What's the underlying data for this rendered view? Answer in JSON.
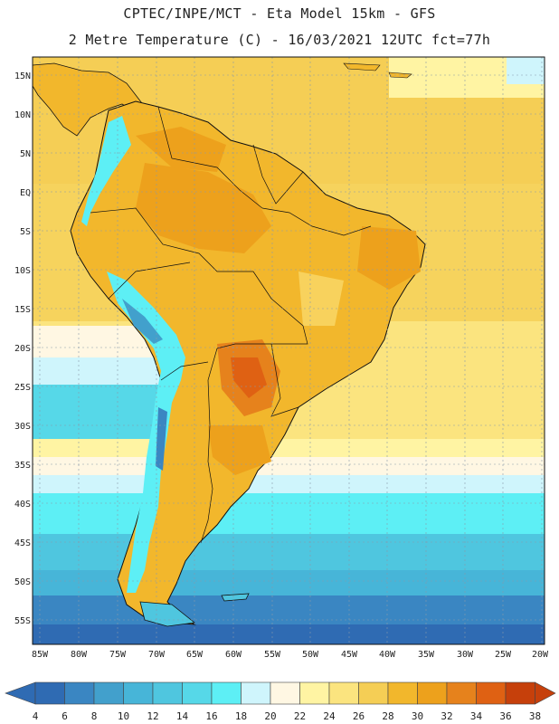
{
  "header": {
    "title_line1": "CPTEC/INPE/MCT -  Eta Model 15km - GFS",
    "title_line2": "2 Metre Temperature (C) - 16/03/2021 12UTC fct=77h"
  },
  "map": {
    "lat_labels": [
      "15N",
      "10N",
      "5N",
      "EQ",
      "5S",
      "10S",
      "15S",
      "20S",
      "25S",
      "30S",
      "35S",
      "40S",
      "45S",
      "50S",
      "55S"
    ],
    "lon_labels": [
      "85W",
      "80W",
      "75W",
      "70W",
      "65W",
      "60W",
      "55W",
      "50W",
      "45W",
      "40W",
      "35W",
      "30W",
      "25W",
      "20W"
    ]
  },
  "legend": {
    "values": [
      "4",
      "6",
      "8",
      "10",
      "12",
      "14",
      "16",
      "18",
      "20",
      "22",
      "24",
      "26",
      "28",
      "30",
      "32",
      "34",
      "36",
      "38"
    ],
    "colors": [
      "#2f6bb3",
      "#3a86c2",
      "#42a0cc",
      "#47b5d8",
      "#4fc6df",
      "#56d8e8",
      "#5deff5",
      "#cff5fc",
      "#fff7e3",
      "#fff4a3",
      "#fbe47f",
      "#f5ce55",
      "#f2b72c",
      "#eda11c",
      "#e6821c",
      "#df6113",
      "#c6400b"
    ],
    "low_color": "#2f6bb3",
    "high_color": "#c6400b"
  },
  "colors": {
    "ocean_warm": "#fbe47f",
    "ocean_mid": "#fff4a3",
    "land_base": "#f2b72c",
    "land_hot": "#eda11c",
    "andes": "#5deff5"
  }
}
